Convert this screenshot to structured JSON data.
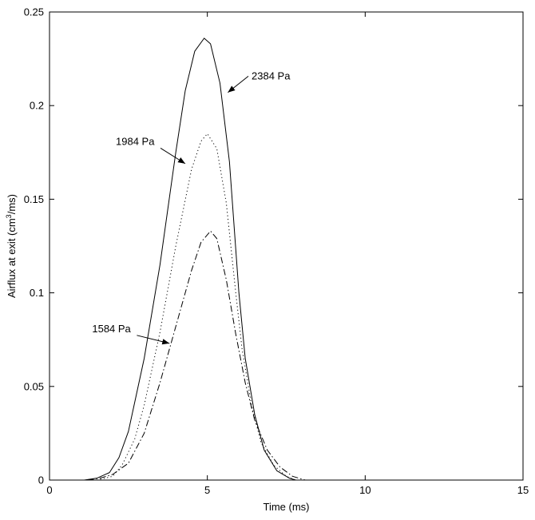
{
  "chart_data": {
    "type": "line",
    "title": "",
    "xlabel": "Time (ms)",
    "ylabel": {
      "prefix": "Airflux at exit (cm",
      "sup": "3",
      "suffix": "/ms)"
    },
    "xlim": [
      0,
      15
    ],
    "ylim": [
      0,
      0.25
    ],
    "xticks": [
      0,
      5,
      10,
      15
    ],
    "xtick_labels": [
      "0",
      "5",
      "10",
      "15"
    ],
    "yticks": [
      0,
      0.05,
      0.1,
      0.15,
      0.2,
      0.25
    ],
    "ytick_labels": [
      "0",
      "0.05",
      "0.1",
      "0.15",
      "0.2",
      "0.25"
    ],
    "grid": false,
    "series": [
      {
        "name": "2384 Pa",
        "style": "solid",
        "x": [
          1.1,
          1.5,
          1.9,
          2.2,
          2.5,
          3.0,
          3.5,
          4.0,
          4.3,
          4.6,
          4.9,
          5.1,
          5.4,
          5.7,
          6.0,
          6.2,
          6.5,
          6.8,
          7.2,
          7.6,
          7.8
        ],
        "y": [
          0,
          0.001,
          0.004,
          0.012,
          0.026,
          0.065,
          0.115,
          0.175,
          0.208,
          0.229,
          0.236,
          0.233,
          0.212,
          0.17,
          0.1,
          0.065,
          0.035,
          0.016,
          0.005,
          0.001,
          0
        ]
      },
      {
        "name": "1984 Pa",
        "style": "dotted",
        "x": [
          1.5,
          2.0,
          2.3,
          2.7,
          3.0,
          3.5,
          4.0,
          4.5,
          4.8,
          5.0,
          5.3,
          5.6,
          5.9,
          6.1,
          6.4,
          6.7,
          7.1,
          7.5,
          7.8
        ],
        "y": [
          0,
          0.002,
          0.008,
          0.022,
          0.04,
          0.079,
          0.125,
          0.166,
          0.181,
          0.185,
          0.177,
          0.148,
          0.1,
          0.07,
          0.04,
          0.02,
          0.008,
          0.002,
          0
        ]
      },
      {
        "name": "1584 Pa",
        "style": "dashdot",
        "x": [
          1.2,
          1.6,
          2.0,
          2.5,
          3.0,
          3.5,
          4.0,
          4.5,
          4.8,
          5.1,
          5.3,
          5.6,
          5.9,
          6.2,
          6.5,
          6.9,
          7.3,
          7.7,
          8.1
        ],
        "y": [
          0,
          0.001,
          0.003,
          0.009,
          0.025,
          0.052,
          0.082,
          0.112,
          0.127,
          0.133,
          0.129,
          0.107,
          0.078,
          0.052,
          0.032,
          0.016,
          0.007,
          0.002,
          0
        ]
      }
    ],
    "annotations": [
      {
        "text": "2384 Pa",
        "at": [
          5.65,
          0.207
        ],
        "text_pos": [
          6.4,
          0.214
        ],
        "anchor": "start"
      },
      {
        "text": "1984 Pa",
        "at": [
          4.3,
          0.169
        ],
        "text_pos": [
          2.1,
          0.179
        ],
        "anchor": "start"
      },
      {
        "text": "1584 Pa",
        "at": [
          3.8,
          0.073
        ],
        "text_pos": [
          1.35,
          0.079
        ],
        "anchor": "start"
      }
    ]
  }
}
